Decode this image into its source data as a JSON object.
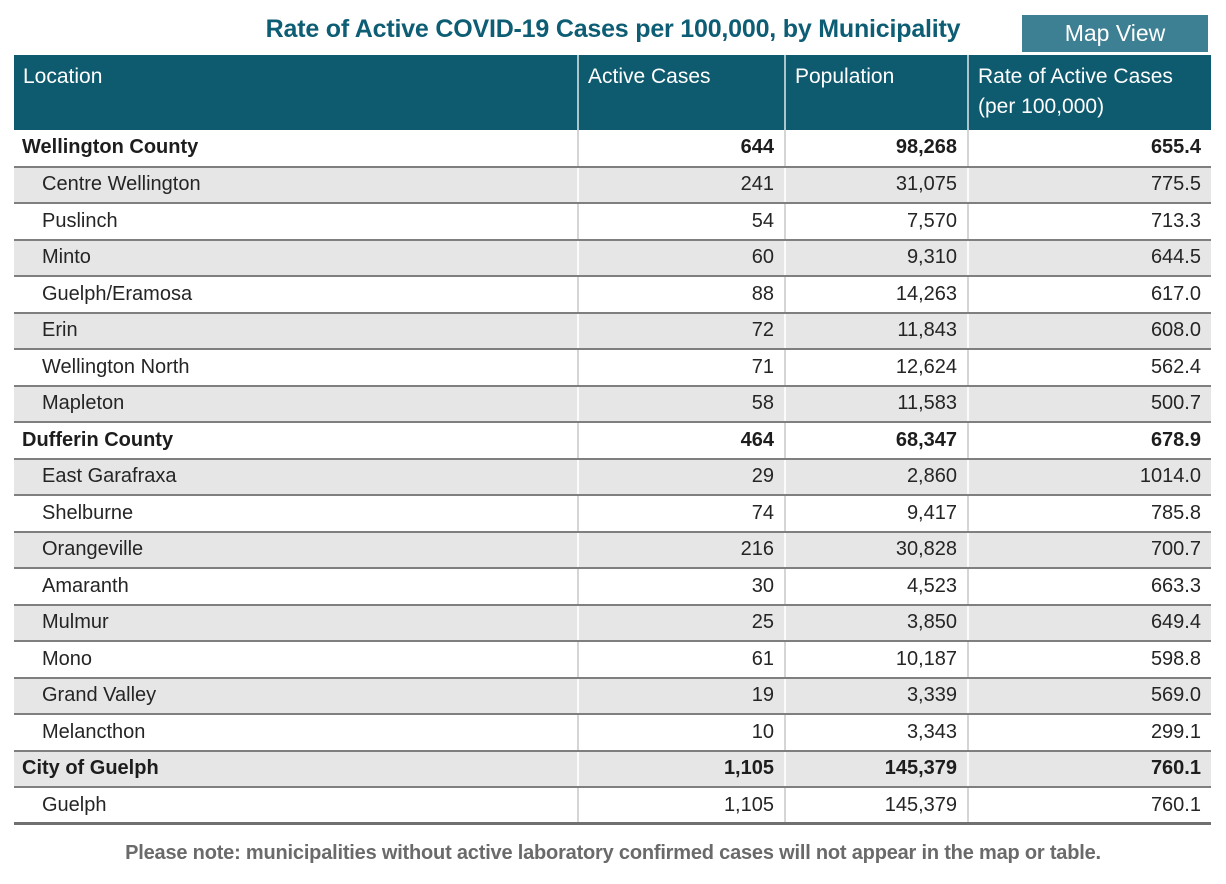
{
  "page": {
    "map_view_button_label": "Map View",
    "footer_note": "Please note: municipalities without active laboratory confirmed cases will not appear in the map or table."
  },
  "colors": {
    "header_background": "#0e5a6e",
    "title_text": "#0d5d74",
    "button_background": "#3e8093",
    "button_text": "#ffffff",
    "alt_row_background": "#e6e6e6",
    "row_divider": "#7f7f7f",
    "footer_text": "#6a6a6a"
  },
  "chart_data": {
    "type": "table",
    "title": "Rate of Active COVID-19 Cases per 100,000, by Municipality",
    "columns": [
      "Location",
      "Active Cases",
      "Population",
      "Rate of Active Cases (per 100,000)"
    ],
    "rows": [
      {
        "location": "Wellington County",
        "active_cases": "644",
        "population": "98,268",
        "rate": "655.4",
        "is_total": true
      },
      {
        "location": "Centre Wellington",
        "active_cases": "241",
        "population": "31,075",
        "rate": "775.5",
        "is_total": false
      },
      {
        "location": "Puslinch",
        "active_cases": "54",
        "population": "7,570",
        "rate": "713.3",
        "is_total": false
      },
      {
        "location": "Minto",
        "active_cases": "60",
        "population": "9,310",
        "rate": "644.5",
        "is_total": false
      },
      {
        "location": "Guelph/Eramosa",
        "active_cases": "88",
        "population": "14,263",
        "rate": "617.0",
        "is_total": false
      },
      {
        "location": "Erin",
        "active_cases": "72",
        "population": "11,843",
        "rate": "608.0",
        "is_total": false
      },
      {
        "location": "Wellington North",
        "active_cases": "71",
        "population": "12,624",
        "rate": "562.4",
        "is_total": false
      },
      {
        "location": "Mapleton",
        "active_cases": "58",
        "population": "11,583",
        "rate": "500.7",
        "is_total": false
      },
      {
        "location": "Dufferin County",
        "active_cases": "464",
        "population": "68,347",
        "rate": "678.9",
        "is_total": true
      },
      {
        "location": "East Garafraxa",
        "active_cases": "29",
        "population": "2,860",
        "rate": "1014.0",
        "is_total": false
      },
      {
        "location": "Shelburne",
        "active_cases": "74",
        "population": "9,417",
        "rate": "785.8",
        "is_total": false
      },
      {
        "location": "Orangeville",
        "active_cases": "216",
        "population": "30,828",
        "rate": "700.7",
        "is_total": false
      },
      {
        "location": "Amaranth",
        "active_cases": "30",
        "population": "4,523",
        "rate": "663.3",
        "is_total": false
      },
      {
        "location": "Mulmur",
        "active_cases": "25",
        "population": "3,850",
        "rate": "649.4",
        "is_total": false
      },
      {
        "location": "Mono",
        "active_cases": "61",
        "population": "10,187",
        "rate": "598.8",
        "is_total": false
      },
      {
        "location": "Grand Valley",
        "active_cases": "19",
        "population": "3,339",
        "rate": "569.0",
        "is_total": false
      },
      {
        "location": "Melancthon",
        "active_cases": "10",
        "population": "3,343",
        "rate": "299.1",
        "is_total": false
      },
      {
        "location": "City of Guelph",
        "active_cases": "1,105",
        "population": "145,379",
        "rate": "760.1",
        "is_total": true
      },
      {
        "location": "Guelph",
        "active_cases": "1,105",
        "population": "145,379",
        "rate": "760.1",
        "is_total": false
      }
    ]
  }
}
